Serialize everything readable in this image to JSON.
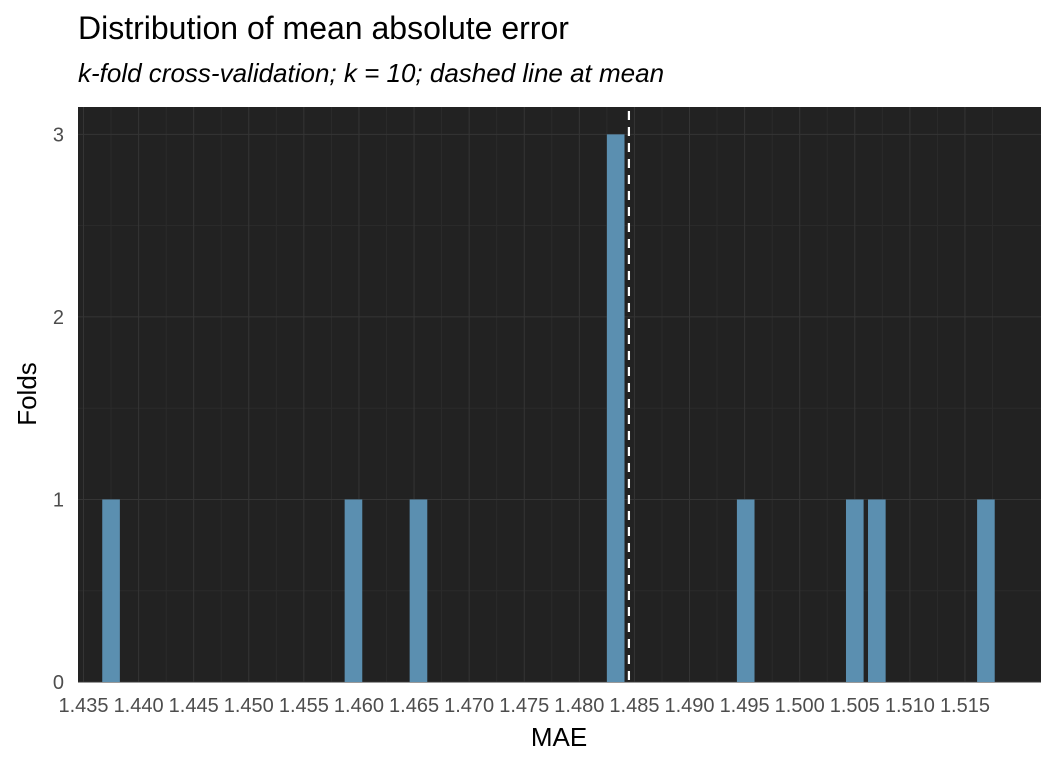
{
  "chart_data": {
    "type": "bar",
    "title": "Distribution of mean absolute error",
    "subtitle": "k-fold cross-validation; k = 10; dashed line at mean",
    "xlabel": "MAE",
    "ylabel": "Folds",
    "xlim": [
      1.4345,
      1.5219
    ],
    "ylim": [
      0,
      3.15
    ],
    "bin_width": 0.0016,
    "x_ticks": [
      1.435,
      1.44,
      1.445,
      1.45,
      1.455,
      1.46,
      1.465,
      1.47,
      1.475,
      1.48,
      1.485,
      1.49,
      1.495,
      1.5,
      1.505,
      1.51,
      1.515
    ],
    "x_tick_labels": [
      "1.435",
      "1.440",
      "1.445",
      "1.450",
      "1.455",
      "1.460",
      "1.465",
      "1.470",
      "1.475",
      "1.480",
      "1.485",
      "1.490",
      "1.495",
      "1.500",
      "1.505",
      "1.510",
      "1.515"
    ],
    "y_ticks": [
      0,
      1,
      2,
      3
    ],
    "y_tick_labels": [
      "0",
      "1",
      "2",
      "3"
    ],
    "series": [
      {
        "name": "Folds",
        "x": [
          1.4375,
          1.4595,
          1.4654,
          1.4833,
          1.4951,
          1.505,
          1.507,
          1.5169
        ],
        "values": [
          1,
          1,
          1,
          3,
          1,
          1,
          1,
          1
        ]
      }
    ],
    "mean_line": 1.4845,
    "colors": {
      "panel": "#222222",
      "grid_major": "#353535",
      "grid_minor": "#2b2b2b",
      "bar": "#5b8fb0",
      "mean_line": "#ffffff"
    },
    "grid": true,
    "legend": "none"
  }
}
